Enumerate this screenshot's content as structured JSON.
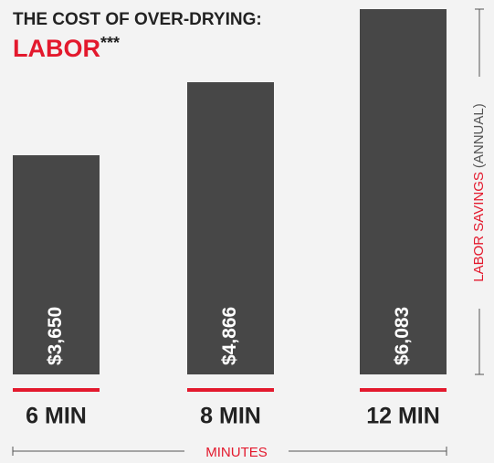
{
  "chart_data": {
    "type": "bar",
    "title": "THE COST OF OVER-DRYING:",
    "subtitle": "LABOR",
    "subtitle_mark": "***",
    "categories": [
      "6 MIN",
      "8 MIN",
      "12 MIN"
    ],
    "values": [
      3650,
      4866,
      6083
    ],
    "value_labels": [
      "$3,650",
      "$4,866",
      "$6,083"
    ],
    "color": "#474747",
    "accent_color": "#e3192d",
    "y_label": "LABOR SAVINGS",
    "y_label_note": "(ANNUAL)",
    "x_label": "MINUTES"
  }
}
